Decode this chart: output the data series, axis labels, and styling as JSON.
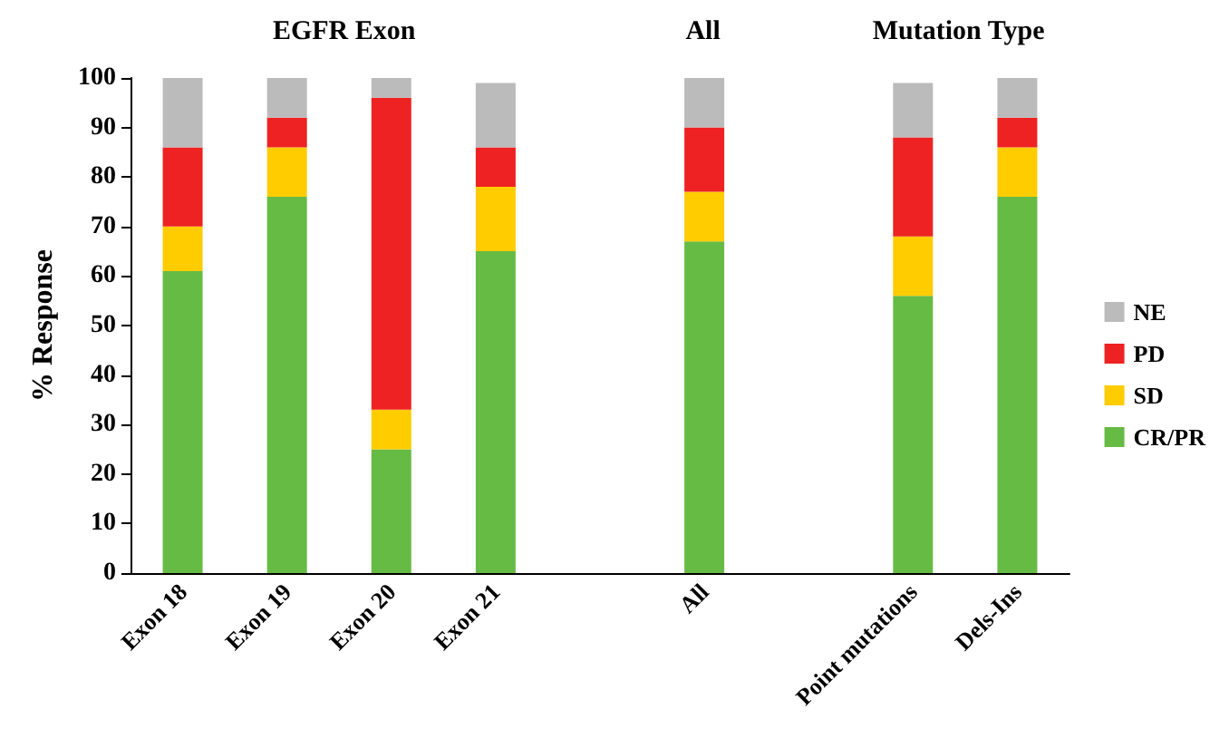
{
  "chart_data": {
    "type": "bar",
    "stacked": true,
    "ylabel": "% Response",
    "annotations": [
      "EGFR Exon",
      "All",
      "Mutation Type"
    ],
    "categories": [
      "Exon 18",
      "Exon 19",
      "Exon 20",
      "Exon 21",
      null,
      "All",
      null,
      "Point mutations",
      "Dels-Ins"
    ],
    "series": [
      {
        "name": "CR/PR",
        "color": "#66bb44",
        "values": [
          61,
          76,
          25,
          65,
          null,
          67,
          null,
          56,
          76
        ]
      },
      {
        "name": "SD",
        "color": "#ffcc00",
        "values": [
          9,
          10,
          8,
          13,
          null,
          10,
          null,
          12,
          10
        ]
      },
      {
        "name": "PD",
        "color": "#ee2222",
        "values": [
          16,
          6,
          63,
          8,
          null,
          13,
          null,
          20,
          6
        ]
      },
      {
        "name": "NE",
        "color": "#bbbbbb",
        "values": [
          14,
          8,
          4,
          13,
          null,
          10,
          null,
          11,
          8
        ]
      }
    ],
    "ylim": [
      0,
      100
    ],
    "yticks": [
      0,
      10,
      20,
      30,
      40,
      50,
      60,
      70,
      80,
      90,
      100
    ],
    "grid": false,
    "legend": "right"
  }
}
